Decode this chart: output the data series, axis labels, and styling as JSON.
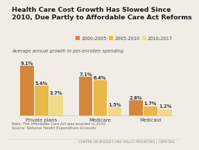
{
  "title_line1": "Health Care Cost Growth Has Slowed Since",
  "title_line2": "2010, Due Partly to Affordable Care Act Reforms",
  "subtitle": "Average annual growth in per-enrollee spending",
  "categories": [
    "Private plans",
    "Medicare",
    "Medicaid"
  ],
  "series": {
    "2000-2005": [
      9.1,
      7.1,
      2.8
    ],
    "2005-2010": [
      5.4,
      6.4,
      1.7
    ],
    "2010-2017": [
      3.7,
      1.5,
      1.2
    ]
  },
  "colors": {
    "2000-2005": "#d4873a",
    "2005-2010": "#e8b84b",
    "2010-2017": "#f0d98a"
  },
  "bar_labels": {
    "2000-2005": [
      "9.1%",
      "7.1%",
      "2.8%"
    ],
    "2005-2010": [
      "5.4%",
      "6.4%",
      "1.7%"
    ],
    "2010-2017": [
      "3.7%",
      "1.5%",
      "1.2%"
    ]
  },
  "note": "Note: The Affordable Care Act was enacted in 2010.",
  "source": "Source: National Health Expenditure Accounts",
  "footer": "CENTER ON BUDGET AND POLICY PRIORITIES | CBPP.ORG",
  "ylim": [
    0,
    10.8
  ],
  "bg_color": "#f2ede4",
  "bar_width": 0.18,
  "label_fontsize": 4.8,
  "title_fontsize": 6.8,
  "subtitle_fontsize": 4.8,
  "axis_label_fontsize": 5.0,
  "legend_fontsize": 4.8,
  "note_fontsize": 3.8,
  "footer_fontsize": 3.5
}
